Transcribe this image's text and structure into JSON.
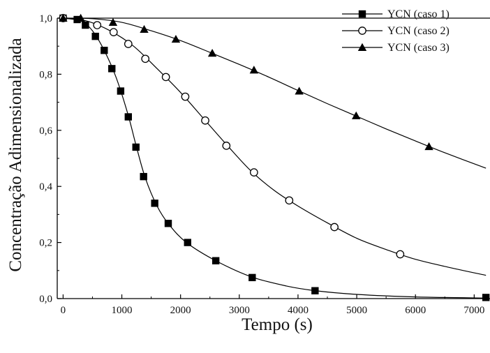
{
  "chart_data": {
    "type": "line",
    "title": "",
    "xlabel": "Tempo (s)",
    "ylabel": "Concentração Adimensionalizada",
    "xlim": [
      -100,
      7400
    ],
    "ylim": [
      0,
      1.0
    ],
    "xticks": [
      0,
      1000,
      2000,
      3000,
      4000,
      5000,
      6000,
      7000
    ],
    "yticks": [
      0.0,
      0.2,
      0.4,
      0.6,
      0.8,
      1.0
    ],
    "xtick_labels": [
      "0",
      "1000",
      "2000",
      "3000",
      "4000",
      "5000",
      "6000",
      "7000"
    ],
    "ytick_labels": [
      "0,0",
      "0,2",
      "0,4",
      "0,6",
      "0,8",
      "1,0"
    ],
    "grid": false,
    "legend_position": "top-right",
    "series": [
      {
        "name": "YCN (caso 1)",
        "marker": "filled-square",
        "color": "#000000",
        "points": [
          [
            0,
            1.0
          ],
          [
            240,
            0.995
          ],
          [
            380,
            0.975
          ],
          [
            550,
            0.935
          ],
          [
            700,
            0.885
          ],
          [
            830,
            0.82
          ],
          [
            980,
            0.74
          ],
          [
            1110,
            0.648
          ],
          [
            1240,
            0.54
          ],
          [
            1370,
            0.435
          ],
          [
            1560,
            0.34
          ],
          [
            1790,
            0.268
          ],
          [
            2120,
            0.2
          ],
          [
            2600,
            0.135
          ],
          [
            3220,
            0.075
          ],
          [
            4290,
            0.028
          ],
          [
            7200,
            0.004
          ]
        ],
        "curve": [
          [
            0,
            1.0
          ],
          [
            300,
            0.99
          ],
          [
            500,
            0.955
          ],
          [
            700,
            0.885
          ],
          [
            900,
            0.79
          ],
          [
            1100,
            0.66
          ],
          [
            1250,
            0.54
          ],
          [
            1400,
            0.43
          ],
          [
            1600,
            0.33
          ],
          [
            1800,
            0.265
          ],
          [
            2100,
            0.2
          ],
          [
            2600,
            0.135
          ],
          [
            3200,
            0.078
          ],
          [
            3800,
            0.045
          ],
          [
            4300,
            0.028
          ],
          [
            5000,
            0.015
          ],
          [
            6000,
            0.006
          ],
          [
            7200,
            0.002
          ]
        ]
      },
      {
        "name": "YCN (caso 2)",
        "marker": "open-circle",
        "color": "#000000",
        "points": [
          [
            0,
            1.0
          ],
          [
            580,
            0.975
          ],
          [
            860,
            0.95
          ],
          [
            1110,
            0.908
          ],
          [
            1400,
            0.855
          ],
          [
            1750,
            0.79
          ],
          [
            2080,
            0.72
          ],
          [
            2420,
            0.635
          ],
          [
            2780,
            0.545
          ],
          [
            3250,
            0.45
          ],
          [
            3850,
            0.35
          ],
          [
            4620,
            0.255
          ],
          [
            5740,
            0.158
          ]
        ],
        "curve": [
          [
            0,
            1.0
          ],
          [
            400,
            0.99
          ],
          [
            800,
            0.955
          ],
          [
            1200,
            0.9
          ],
          [
            1600,
            0.82
          ],
          [
            2000,
            0.735
          ],
          [
            2400,
            0.64
          ],
          [
            2800,
            0.545
          ],
          [
            3200,
            0.455
          ],
          [
            3600,
            0.385
          ],
          [
            4000,
            0.33
          ],
          [
            4500,
            0.27
          ],
          [
            5000,
            0.215
          ],
          [
            5500,
            0.175
          ],
          [
            6000,
            0.14
          ],
          [
            6600,
            0.11
          ],
          [
            7200,
            0.083
          ]
        ]
      },
      {
        "name": "YCN (caso 3)",
        "marker": "filled-triangle",
        "color": "#000000",
        "points": [
          [
            0,
            1.0
          ],
          [
            300,
            1.0
          ],
          [
            850,
            0.985
          ],
          [
            1380,
            0.96
          ],
          [
            1920,
            0.925
          ],
          [
            2540,
            0.875
          ],
          [
            3250,
            0.815
          ],
          [
            4020,
            0.74
          ],
          [
            4990,
            0.652
          ],
          [
            6230,
            0.542
          ]
        ],
        "curve": [
          [
            0,
            1.0
          ],
          [
            500,
            0.998
          ],
          [
            1000,
            0.985
          ],
          [
            1500,
            0.955
          ],
          [
            2000,
            0.92
          ],
          [
            2500,
            0.878
          ],
          [
            3000,
            0.835
          ],
          [
            3500,
            0.79
          ],
          [
            4000,
            0.742
          ],
          [
            4500,
            0.695
          ],
          [
            5000,
            0.65
          ],
          [
            5500,
            0.605
          ],
          [
            6000,
            0.562
          ],
          [
            6500,
            0.52
          ],
          [
            7200,
            0.465
          ]
        ]
      }
    ]
  }
}
